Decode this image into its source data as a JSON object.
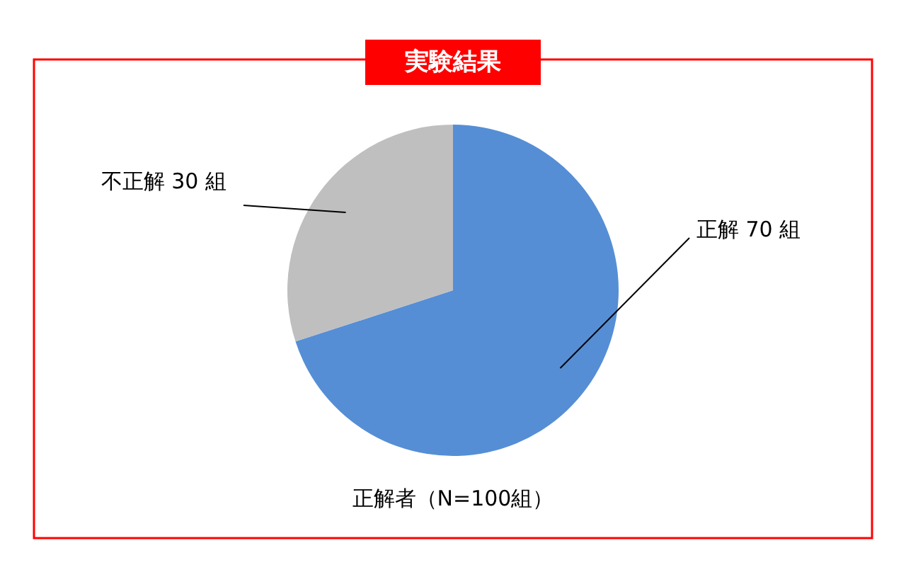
{
  "chart_data": {
    "type": "pie",
    "title": "実験結果",
    "categories": [
      "正解",
      "不正解"
    ],
    "values": [
      70,
      30
    ],
    "value_labels": [
      "70 組",
      "30 組"
    ],
    "colors": [
      "#558ed5",
      "#bfbfbf"
    ],
    "annotations": [
      "正解者（N=100組）"
    ]
  }
}
